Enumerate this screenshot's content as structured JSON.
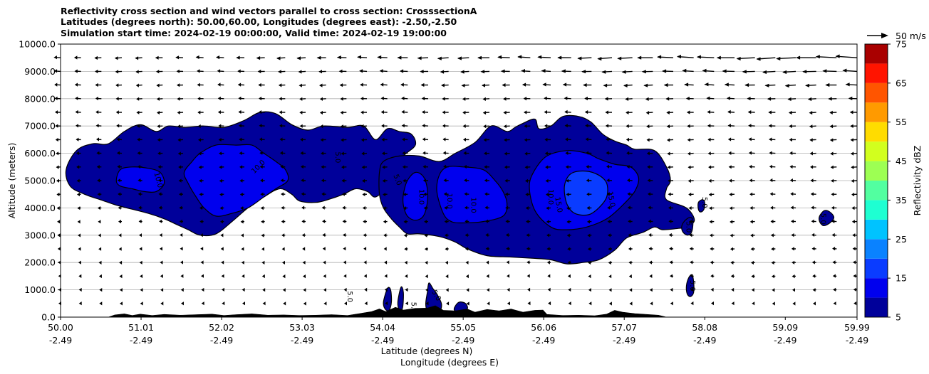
{
  "chart_data": {
    "type": "contourf",
    "title_lines": [
      "Reflectivity cross section and wind vectors parallel to cross section: CrosssectionA",
      "Latitudes (degrees north): 50.00,60.00, Longitudes (degrees east): -2.50,-2.50",
      "Simulation start time: 2024-02-19 00:00:00, Valid time: 2024-02-19 19:00:00"
    ],
    "ylabel": "Altitude (meters)",
    "xlabel_lat": "Latitude (degrees N)",
    "xlabel_lon": "Longitude (degrees E)",
    "xlim": [
      50.0,
      59.99
    ],
    "ylim": [
      0,
      10000
    ],
    "x_ticks": [
      50.0,
      51.01,
      52.02,
      53.03,
      54.04,
      55.05,
      56.06,
      57.07,
      58.08,
      59.09,
      59.99
    ],
    "x_tick_lat_labels": [
      "50.00",
      "51.01",
      "52.02",
      "53.03",
      "54.04",
      "55.05",
      "56.06",
      "57.07",
      "58.08",
      "59.09",
      "59.99"
    ],
    "x_tick_lon_labels": [
      "-2.49",
      "-2.49",
      "-2.49",
      "-2.49",
      "-2.49",
      "-2.49",
      "-2.49",
      "-2.49",
      "-2.49",
      "-2.49",
      "-2.49"
    ],
    "y_ticks": [
      0,
      1000,
      2000,
      3000,
      4000,
      5000,
      6000,
      7000,
      8000,
      9000,
      10000
    ],
    "y_tick_labels": [
      "0.0",
      "1000.0",
      "2000.0",
      "3000.0",
      "4000.0",
      "5000.0",
      "6000.0",
      "7000.0",
      "8000.0",
      "9000.0",
      "10000.0"
    ],
    "grid": "horizontal",
    "colorbar": {
      "label": "Reflectivity dBZ",
      "levels": [
        5,
        10,
        15,
        20,
        25,
        30,
        35,
        40,
        45,
        50,
        55,
        60,
        65,
        70,
        75
      ],
      "tick_labels": [
        "5",
        "15",
        "25",
        "35",
        "45",
        "55",
        "65",
        "75"
      ],
      "tick_values": [
        5,
        15,
        25,
        35,
        45,
        55,
        65,
        75
      ],
      "colors": [
        "#00009a",
        "#0000ee",
        "#0a3cff",
        "#0a82ff",
        "#00c3ff",
        "#1effd2",
        "#52ffa0",
        "#9dff53",
        "#d2ff1e",
        "#ffdc00",
        "#ff9a00",
        "#ff5500",
        "#ff1400",
        "#a90000"
      ]
    },
    "quiver_key": {
      "label": "50 m/s",
      "speed_ms": 50
    },
    "contour_labels": [
      "5.0",
      "10.0",
      "15.0"
    ],
    "regions": [
      {
        "name": "cloud-west",
        "level": 5,
        "pts": [
          [
            50.07,
            5400
          ],
          [
            50.2,
            6100
          ],
          [
            50.4,
            6350
          ],
          [
            50.6,
            6350
          ],
          [
            50.8,
            6800
          ],
          [
            51.0,
            7050
          ],
          [
            51.2,
            6800
          ],
          [
            51.35,
            7000
          ],
          [
            51.55,
            6950
          ],
          [
            51.8,
            7000
          ],
          [
            52.05,
            6950
          ],
          [
            52.3,
            7200
          ],
          [
            52.5,
            7500
          ],
          [
            52.7,
            7450
          ],
          [
            52.9,
            7050
          ],
          [
            53.1,
            6850
          ],
          [
            53.3,
            7000
          ],
          [
            53.6,
            6950
          ],
          [
            53.8,
            7000
          ],
          [
            53.95,
            6500
          ],
          [
            54.1,
            6900
          ],
          [
            54.25,
            6800
          ],
          [
            54.4,
            6700
          ],
          [
            54.45,
            6300
          ],
          [
            54.3,
            5900
          ],
          [
            54.15,
            5300
          ],
          [
            54.1,
            4800
          ],
          [
            53.95,
            4400
          ],
          [
            53.85,
            4600
          ],
          [
            53.7,
            4700
          ],
          [
            53.55,
            4500
          ],
          [
            53.35,
            4300
          ],
          [
            53.2,
            4200
          ],
          [
            53.0,
            4250
          ],
          [
            52.9,
            4500
          ],
          [
            52.75,
            4700
          ],
          [
            52.55,
            4400
          ],
          [
            52.35,
            4000
          ],
          [
            52.15,
            3500
          ],
          [
            51.95,
            3050
          ],
          [
            51.75,
            3000
          ],
          [
            51.6,
            3200
          ],
          [
            51.45,
            3400
          ],
          [
            51.3,
            3600
          ],
          [
            51.1,
            3800
          ],
          [
            50.9,
            3950
          ],
          [
            50.7,
            4100
          ],
          [
            50.5,
            4300
          ],
          [
            50.3,
            4500
          ],
          [
            50.12,
            4800
          ]
        ]
      },
      {
        "name": "cloud-east",
        "level": 5,
        "pts": [
          [
            54.0,
            5300
          ],
          [
            54.05,
            5700
          ],
          [
            54.25,
            5900
          ],
          [
            54.5,
            5900
          ],
          [
            54.75,
            5700
          ],
          [
            54.95,
            6000
          ],
          [
            55.2,
            6400
          ],
          [
            55.4,
            7000
          ],
          [
            55.6,
            6800
          ],
          [
            55.7,
            6950
          ],
          [
            55.8,
            7100
          ],
          [
            55.95,
            7250
          ],
          [
            56.0,
            6900
          ],
          [
            56.15,
            7000
          ],
          [
            56.3,
            7350
          ],
          [
            56.5,
            7350
          ],
          [
            56.65,
            7150
          ],
          [
            56.8,
            6700
          ],
          [
            56.95,
            6450
          ],
          [
            57.1,
            6300
          ],
          [
            57.2,
            6150
          ],
          [
            57.45,
            6100
          ],
          [
            57.6,
            5500
          ],
          [
            57.65,
            5000
          ],
          [
            57.6,
            4700
          ],
          [
            57.6,
            4300
          ],
          [
            57.85,
            4000
          ],
          [
            57.95,
            3550
          ],
          [
            57.85,
            3300
          ],
          [
            57.75,
            3250
          ],
          [
            57.55,
            3200
          ],
          [
            57.45,
            3300
          ],
          [
            57.3,
            3100
          ],
          [
            57.1,
            2900
          ],
          [
            56.95,
            2450
          ],
          [
            56.75,
            2100
          ],
          [
            56.55,
            2000
          ],
          [
            56.35,
            1950
          ],
          [
            56.15,
            2100
          ],
          [
            55.95,
            2150
          ],
          [
            55.65,
            2200
          ],
          [
            55.35,
            2250
          ],
          [
            55.1,
            2500
          ],
          [
            54.95,
            2750
          ],
          [
            54.75,
            2950
          ],
          [
            54.5,
            3050
          ],
          [
            54.35,
            3050
          ],
          [
            54.25,
            3300
          ],
          [
            54.15,
            3600
          ],
          [
            54.05,
            4000
          ],
          [
            54.0,
            4500
          ]
        ]
      },
      {
        "name": "cell-58a",
        "level": 5,
        "pts": [
          [
            57.82,
            3500
          ],
          [
            57.89,
            3650
          ],
          [
            57.93,
            3550
          ],
          [
            57.92,
            3150
          ],
          [
            57.87,
            3000
          ],
          [
            57.81,
            3100
          ],
          [
            57.79,
            3300
          ]
        ]
      },
      {
        "name": "cell-58b",
        "level": 5,
        "pts": [
          [
            57.85,
            1150
          ],
          [
            57.88,
            1450
          ],
          [
            57.92,
            1550
          ],
          [
            57.94,
            1300
          ],
          [
            57.94,
            900
          ],
          [
            57.9,
            750
          ],
          [
            57.86,
            850
          ]
        ]
      },
      {
        "name": "cell-58c",
        "level": 5,
        "pts": [
          [
            58.0,
            4200
          ],
          [
            58.05,
            4300
          ],
          [
            58.08,
            4200
          ],
          [
            58.07,
            3950
          ],
          [
            58.03,
            3850
          ],
          [
            58.0,
            3950
          ]
        ]
      },
      {
        "name": "cell-59",
        "level": 5,
        "pts": [
          [
            59.52,
            3700
          ],
          [
            59.58,
            3900
          ],
          [
            59.65,
            3850
          ],
          [
            59.7,
            3650
          ],
          [
            59.65,
            3450
          ],
          [
            59.57,
            3350
          ],
          [
            59.52,
            3500
          ]
        ]
      },
      {
        "name": "low-cell-a",
        "level": 5,
        "pts": [
          [
            54.05,
            550
          ],
          [
            54.1,
            1050
          ],
          [
            54.14,
            1000
          ],
          [
            54.15,
            550
          ],
          [
            54.12,
            250
          ],
          [
            54.07,
            300
          ]
        ]
      },
      {
        "name": "low-cell-b",
        "level": 5,
        "pts": [
          [
            54.23,
            550
          ],
          [
            54.27,
            1100
          ],
          [
            54.3,
            900
          ],
          [
            54.29,
            350
          ],
          [
            54.25,
            250
          ]
        ]
      },
      {
        "name": "low-cell-c",
        "level": 5,
        "pts": [
          [
            54.6,
            900
          ],
          [
            54.62,
            1250
          ],
          [
            54.67,
            1050
          ],
          [
            54.73,
            800
          ],
          [
            54.78,
            450
          ],
          [
            54.74,
            150
          ],
          [
            54.62,
            150
          ],
          [
            54.58,
            450
          ]
        ]
      },
      {
        "name": "low-cell-d",
        "level": 5,
        "pts": [
          [
            54.95,
            400
          ],
          [
            55.0,
            550
          ],
          [
            55.08,
            500
          ],
          [
            55.1,
            300
          ],
          [
            55.0,
            200
          ],
          [
            54.94,
            250
          ]
        ]
      },
      {
        "name": "core-w1",
        "level": 10,
        "pts": [
          [
            50.7,
            5000
          ],
          [
            50.75,
            5400
          ],
          [
            50.9,
            5500
          ],
          [
            51.1,
            5450
          ],
          [
            51.25,
            5300
          ],
          [
            51.3,
            4900
          ],
          [
            51.2,
            4600
          ],
          [
            51.05,
            4600
          ],
          [
            50.9,
            4700
          ],
          [
            50.75,
            4800
          ]
        ]
      },
      {
        "name": "core-w2",
        "level": 10,
        "pts": [
          [
            51.55,
            5300
          ],
          [
            51.65,
            5700
          ],
          [
            51.75,
            6000
          ],
          [
            51.95,
            6300
          ],
          [
            52.2,
            6300
          ],
          [
            52.4,
            6300
          ],
          [
            52.55,
            6000
          ],
          [
            52.7,
            5700
          ],
          [
            52.82,
            5400
          ],
          [
            52.85,
            5000
          ],
          [
            52.7,
            4700
          ],
          [
            52.55,
            4400
          ],
          [
            52.35,
            4000
          ],
          [
            52.15,
            3800
          ],
          [
            51.95,
            3700
          ],
          [
            51.8,
            4000
          ],
          [
            51.7,
            4400
          ],
          [
            51.6,
            4900
          ]
        ]
      },
      {
        "name": "core-e1",
        "level": 10,
        "pts": [
          [
            54.3,
            4500
          ],
          [
            54.35,
            5000
          ],
          [
            54.45,
            5300
          ],
          [
            54.55,
            5150
          ],
          [
            54.6,
            4700
          ],
          [
            54.6,
            4200
          ],
          [
            54.55,
            3700
          ],
          [
            54.45,
            3550
          ],
          [
            54.35,
            3700
          ],
          [
            54.3,
            4100
          ]
        ]
      },
      {
        "name": "core-e2",
        "level": 10,
        "pts": [
          [
            54.72,
            4600
          ],
          [
            54.75,
            5200
          ],
          [
            54.85,
            5500
          ],
          [
            55.05,
            5500
          ],
          [
            55.3,
            5400
          ],
          [
            55.45,
            5000
          ],
          [
            55.55,
            4600
          ],
          [
            55.6,
            4150
          ],
          [
            55.55,
            3700
          ],
          [
            55.3,
            3500
          ],
          [
            55.05,
            3450
          ],
          [
            54.9,
            3500
          ],
          [
            54.8,
            3800
          ]
        ]
      },
      {
        "name": "core-e3",
        "level": 10,
        "pts": [
          [
            55.88,
            4800
          ],
          [
            55.95,
            5400
          ],
          [
            56.1,
            5900
          ],
          [
            56.35,
            6100
          ],
          [
            56.6,
            6000
          ],
          [
            56.75,
            5800
          ],
          [
            56.95,
            5600
          ],
          [
            57.15,
            5500
          ],
          [
            57.25,
            5100
          ],
          [
            57.2,
            4600
          ],
          [
            57.05,
            4100
          ],
          [
            56.85,
            3600
          ],
          [
            56.6,
            3300
          ],
          [
            56.35,
            3200
          ],
          [
            56.15,
            3300
          ],
          [
            55.95,
            3900
          ]
        ]
      },
      {
        "name": "core-e4",
        "level": 15,
        "pts": [
          [
            56.32,
            4800
          ],
          [
            56.4,
            5250
          ],
          [
            56.58,
            5350
          ],
          [
            56.75,
            5200
          ],
          [
            56.85,
            4900
          ],
          [
            56.85,
            4400
          ],
          [
            56.75,
            4000
          ],
          [
            56.62,
            3750
          ],
          [
            56.45,
            3800
          ],
          [
            56.35,
            4150
          ]
        ]
      }
    ]
  }
}
